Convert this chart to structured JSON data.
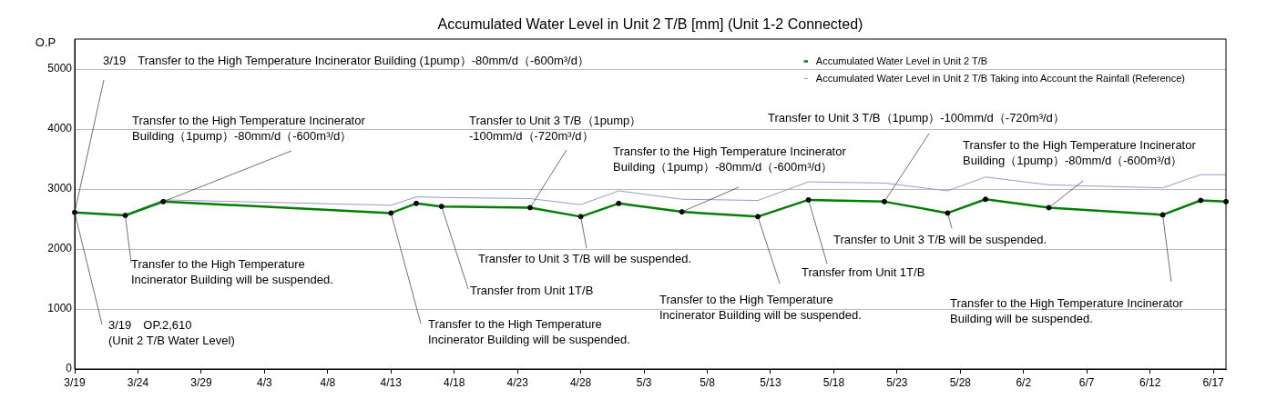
{
  "chart_data": {
    "type": "line",
    "title": "Accumulated Water Level in Unit 2 T/B [mm] (Unit 1-2 Connected)",
    "ylabel": "O.P",
    "x": [
      "--03-19",
      "--03-23",
      "--03-26",
      "--04-13",
      "--04-15",
      "--04-17",
      "--04-24",
      "--04-28",
      "--05-01",
      "--05-06",
      "--05-12",
      "--05-16",
      "--05-22",
      "--05-27",
      "--05-30",
      "--06-04",
      "--06-13",
      "--06-16",
      "--06-18"
    ],
    "series": [
      {
        "name": "Accumulated Water Level in Unit 2 T/B",
        "color": "#008000",
        "marker": "circle",
        "values": [
          2610,
          2560,
          2790,
          2600,
          2760,
          2710,
          2690,
          2540,
          2760,
          2620,
          2540,
          2820,
          2790,
          2600,
          2830,
          2690,
          2570,
          2810,
          2790
        ]
      },
      {
        "name": "Accumulated Water Level in Unit 2 T/B Taking into Account the Rainfall (Reference)",
        "color": "#9999cc",
        "marker": "none",
        "values": [
          2610,
          2570,
          2820,
          2730,
          2870,
          2860,
          2840,
          2740,
          2970,
          2830,
          2810,
          3120,
          3100,
          2970,
          3200,
          3070,
          3020,
          3240,
          3240
        ]
      }
    ],
    "xlim": [
      "--03-19",
      "--06-18"
    ],
    "xticks": [
      {
        "value": "--03-19",
        "label": "3/19"
      },
      {
        "value": "--03-24",
        "label": "3/24"
      },
      {
        "value": "--03-29",
        "label": "3/29"
      },
      {
        "value": "--04-03",
        "label": "4/3"
      },
      {
        "value": "--04-08",
        "label": "4/8"
      },
      {
        "value": "--04-13",
        "label": "4/13"
      },
      {
        "value": "--04-18",
        "label": "4/18"
      },
      {
        "value": "--04-23",
        "label": "4/23"
      },
      {
        "value": "--04-28",
        "label": "4/28"
      },
      {
        "value": "--05-03",
        "label": "5/3"
      },
      {
        "value": "--05-08",
        "label": "5/8"
      },
      {
        "value": "--05-13",
        "label": "5/13"
      },
      {
        "value": "--05-18",
        "label": "5/18"
      },
      {
        "value": "--05-23",
        "label": "5/23"
      },
      {
        "value": "--05-28",
        "label": "5/28"
      },
      {
        "value": "--06-02",
        "label": "6/2"
      },
      {
        "value": "--06-07",
        "label": "6/7"
      },
      {
        "value": "--06-12",
        "label": "6/12"
      },
      {
        "value": "--06-17",
        "label": "6/17"
      }
    ],
    "ylim": [
      0,
      5500
    ],
    "yticks": [
      0,
      1000,
      2000,
      3000,
      4000,
      5000
    ],
    "grid": "y",
    "legend": "top right",
    "annotations": [
      {
        "text": "3/19　Transfer to the High Temperature Incinerator Building (1pump）-80mm/d（-600m³/d）",
        "x": "--03-19",
        "y": 2610
      },
      {
        "text": "3/19　OP.2,610\n(Unit 2 T/B Water Level)",
        "x": "--03-19",
        "y": 2610
      },
      {
        "text": "Transfer to the High Temperature Incinerator\nBuilding（1pump）-80mm/d（-600m³/d）",
        "x": "--03-26",
        "y": 2790
      },
      {
        "text": "Transfer to the High Temperature\nIncinerator Building will be suspended.",
        "x": "--03-23",
        "y": 2560
      },
      {
        "text": "Transfer to the High Temperature\nIncinerator Building will be suspended.",
        "x": "--04-13",
        "y": 2600
      },
      {
        "text": "Transfer from Unit 1T/B",
        "x": "--04-17",
        "y": 2710
      },
      {
        "text": "Transfer to Unit 3 T/B（1pump）\n-100mm/d（-720m³/d）",
        "x": "--04-24",
        "y": 2690
      },
      {
        "text": "Transfer to Unit 3 T/B will be suspended.",
        "x": "--04-28",
        "y": 2540
      },
      {
        "text": "Transfer to the High Temperature Incinerator\nBuilding（1pump）-80mm/d（-600m³/d）",
        "x": "--05-06",
        "y": 2620
      },
      {
        "text": "Transfer to the High Temperature\nIncinerator Building will be suspended.",
        "x": "--05-12",
        "y": 2540
      },
      {
        "text": "Transfer from Unit 1T/B",
        "x": "--05-16",
        "y": 2820
      },
      {
        "text": "Transfer to Unit 3 T/B（1pump）-100mm/d（-720m³/d）",
        "x": "--05-22",
        "y": 2790
      },
      {
        "text": "Transfer to Unit 3 T/B will be suspended.",
        "x": "--05-27",
        "y": 2600
      },
      {
        "text": "Transfer to the High Temperature Incinerator\nBuilding（1pump）-80mm/d（-600m³/d）",
        "x": "--06-04",
        "y": 2690
      },
      {
        "text": "Transfer to the High Temperature Incinerator\nBuilding will be suspended.",
        "x": "--06-13",
        "y": 2570
      }
    ]
  }
}
